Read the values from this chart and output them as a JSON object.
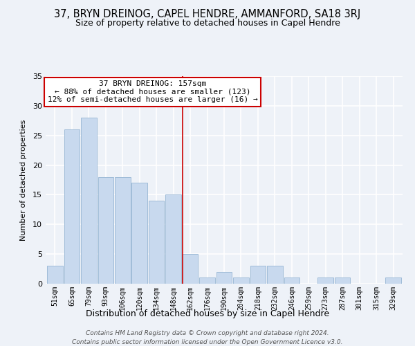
{
  "title": "37, BRYN DREINOG, CAPEL HENDRE, AMMANFORD, SA18 3RJ",
  "subtitle": "Size of property relative to detached houses in Capel Hendre",
  "xlabel": "Distribution of detached houses by size in Capel Hendre",
  "ylabel": "Number of detached properties",
  "bar_labels": [
    "51sqm",
    "65sqm",
    "79sqm",
    "93sqm",
    "106sqm",
    "120sqm",
    "134sqm",
    "148sqm",
    "162sqm",
    "176sqm",
    "190sqm",
    "204sqm",
    "218sqm",
    "232sqm",
    "246sqm",
    "259sqm",
    "273sqm",
    "287sqm",
    "301sqm",
    "315sqm",
    "329sqm"
  ],
  "bar_values": [
    3,
    26,
    28,
    18,
    18,
    17,
    14,
    15,
    5,
    1,
    2,
    1,
    3,
    3,
    1,
    0,
    1,
    1,
    0,
    0,
    1
  ],
  "bar_color": "#c8d9ee",
  "bar_edge_color": "#a0bcd8",
  "vline_color": "#cc0000",
  "ylim": [
    0,
    35
  ],
  "yticks": [
    0,
    5,
    10,
    15,
    20,
    25,
    30,
    35
  ],
  "annotation_title": "37 BRYN DREINOG: 157sqm",
  "annotation_line1": "← 88% of detached houses are smaller (123)",
  "annotation_line2": "12% of semi-detached houses are larger (16) →",
  "footer_line1": "Contains HM Land Registry data © Crown copyright and database right 2024.",
  "footer_line2": "Contains public sector information licensed under the Open Government Licence v3.0.",
  "background_color": "#eef2f8"
}
